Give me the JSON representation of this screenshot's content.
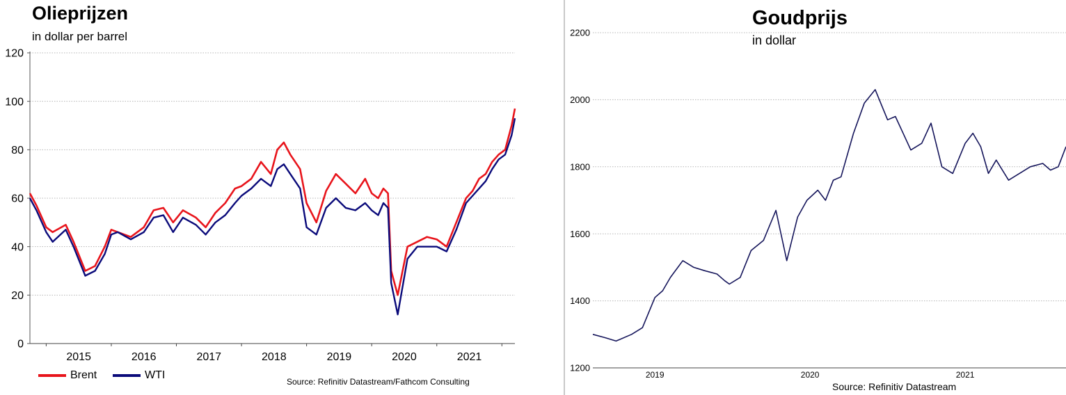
{
  "oil": {
    "title": "Olieprijzen",
    "subtitle": "in dollar per barrel",
    "source": "Source: Refinitiv Datastream/Fathcom Consulting",
    "colors": {
      "Brent": "#e8141b",
      "WTI": "#0a0a7a"
    }
  },
  "gold": {
    "title": "Goudprijs",
    "subtitle": "in dollar",
    "source": "Source: Refinitiv Datastream",
    "colors": {
      "Gold": "#14145a"
    }
  },
  "chart_data": [
    {
      "type": "line",
      "title": "Olieprijzen",
      "subtitle": "in dollar per barrel",
      "ylim": [
        0,
        120
      ],
      "yticks": [
        0,
        20,
        40,
        60,
        80,
        100,
        120
      ],
      "xlim": [
        2014.75,
        2022.2
      ],
      "xtick_labels": [
        "2015",
        "2016",
        "2017",
        "2018",
        "2019",
        "2020",
        "2021"
      ],
      "xtick_positions": [
        2015.5,
        2016.5,
        2017.5,
        2018.5,
        2019.5,
        2020.5,
        2021.5
      ],
      "grid": true,
      "legend": "bottom-left",
      "x": [
        2014.75,
        2014.85,
        2015.0,
        2015.1,
        2015.3,
        2015.42,
        2015.6,
        2015.75,
        2015.9,
        2016.0,
        2016.1,
        2016.3,
        2016.5,
        2016.65,
        2016.8,
        2016.95,
        2017.1,
        2017.3,
        2017.45,
        2017.6,
        2017.75,
        2017.9,
        2018.0,
        2018.15,
        2018.3,
        2018.45,
        2018.55,
        2018.65,
        2018.75,
        2018.9,
        2019.0,
        2019.15,
        2019.3,
        2019.45,
        2019.6,
        2019.75,
        2019.9,
        2020.0,
        2020.1,
        2020.18,
        2020.25,
        2020.3,
        2020.4,
        2020.55,
        2020.7,
        2020.85,
        2021.0,
        2021.15,
        2021.3,
        2021.45,
        2021.55,
        2021.65,
        2021.75,
        2021.85,
        2021.95,
        2022.05,
        2022.15,
        2022.2
      ],
      "series": [
        {
          "name": "Brent",
          "values": [
            62,
            57,
            48,
            46,
            49,
            42,
            30,
            32,
            40,
            47,
            46,
            44,
            48,
            55,
            56,
            50,
            55,
            52,
            48,
            54,
            58,
            64,
            65,
            68,
            75,
            70,
            80,
            83,
            78,
            72,
            58,
            50,
            63,
            70,
            66,
            62,
            68,
            62,
            60,
            64,
            62,
            30,
            20,
            40,
            42,
            44,
            43,
            40,
            50,
            60,
            63,
            68,
            70,
            75,
            78,
            80,
            90,
            97
          ]
        },
        {
          "name": "WTI",
          "values": [
            60,
            55,
            46,
            42,
            47,
            40,
            28,
            30,
            37,
            45,
            46,
            43,
            46,
            52,
            53,
            46,
            52,
            49,
            45,
            50,
            53,
            58,
            61,
            64,
            68,
            65,
            72,
            74,
            70,
            64,
            48,
            45,
            56,
            60,
            56,
            55,
            58,
            55,
            53,
            58,
            56,
            25,
            12,
            35,
            40,
            40,
            40,
            38,
            47,
            58,
            61,
            64,
            67,
            72,
            76,
            78,
            86,
            93
          ]
        }
      ]
    },
    {
      "type": "line",
      "title": "Goudprijs",
      "subtitle": "in dollar",
      "ylim": [
        1200,
        2200
      ],
      "yticks": [
        1200,
        1400,
        1600,
        1800,
        2000,
        2200
      ],
      "xlim": [
        2018.6,
        2021.65
      ],
      "xtick_labels": [
        "2019",
        "2020",
        "2021"
      ],
      "xtick_positions": [
        2019.0,
        2020.0,
        2021.0
      ],
      "grid": true,
      "x": [
        2018.6,
        2018.68,
        2018.75,
        2018.85,
        2018.92,
        2019.0,
        2019.05,
        2019.1,
        2019.18,
        2019.25,
        2019.32,
        2019.4,
        2019.45,
        2019.48,
        2019.55,
        2019.62,
        2019.7,
        2019.78,
        2019.85,
        2019.92,
        2019.98,
        2020.05,
        2020.1,
        2020.15,
        2020.2,
        2020.28,
        2020.35,
        2020.42,
        2020.5,
        2020.55,
        2020.6,
        2020.65,
        2020.72,
        2020.78,
        2020.85,
        2020.92,
        2021.0,
        2021.05,
        2021.1,
        2021.15,
        2021.2,
        2021.28,
        2021.35,
        2021.42,
        2021.5,
        2021.55,
        2021.6,
        2021.65
      ],
      "series": [
        {
          "name": "",
          "values": [
            1300,
            1290,
            1280,
            1300,
            1320,
            1410,
            1430,
            1470,
            1520,
            1500,
            1490,
            1480,
            1460,
            1450,
            1470,
            1550,
            1580,
            1670,
            1520,
            1650,
            1700,
            1730,
            1700,
            1760,
            1770,
            1900,
            1990,
            2030,
            1940,
            1950,
            1900,
            1850,
            1870,
            1930,
            1800,
            1780,
            1870,
            1900,
            1860,
            1780,
            1820,
            1760,
            1780,
            1800,
            1810,
            1790,
            1800,
            1860
          ]
        }
      ]
    }
  ]
}
